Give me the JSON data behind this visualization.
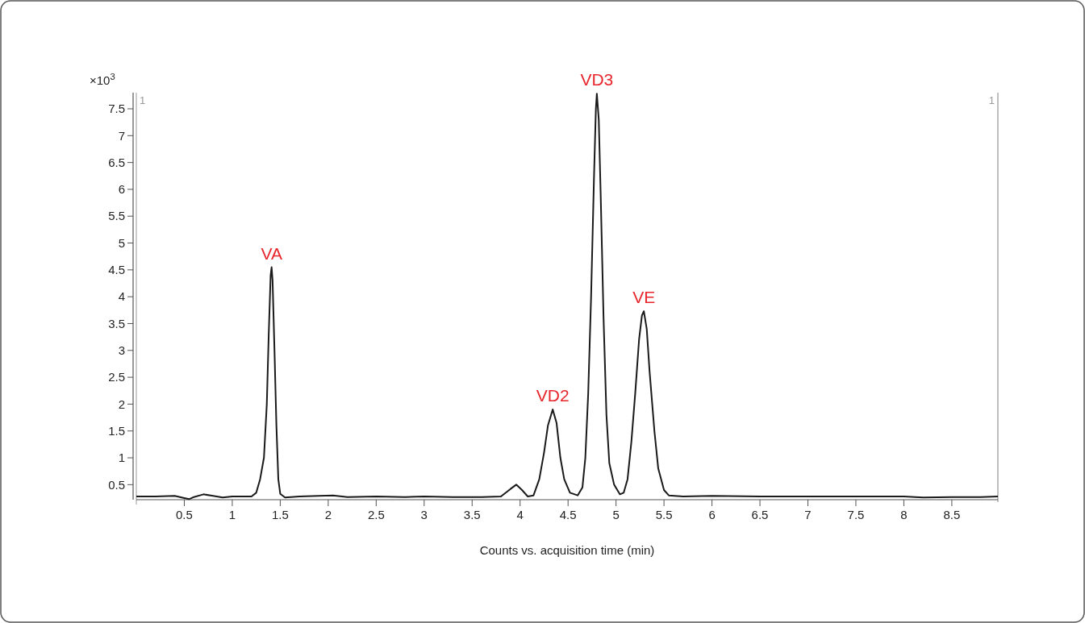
{
  "chart_data": {
    "type": "line",
    "xlabel": "Counts vs. acquisition time (min)",
    "ylabel": "×10$^{3}$",
    "xlim": [
      0,
      8.98
    ],
    "ylim": [
      0.22,
      7.8
    ],
    "xticks": [
      0.5,
      1,
      1.5,
      2,
      2.5,
      3,
      3.5,
      4,
      4.5,
      5,
      5.5,
      6,
      6.5,
      7,
      7.5,
      8,
      8.5
    ],
    "yticks": [
      0.5,
      1,
      1.5,
      2,
      2.5,
      3,
      3.5,
      4,
      4.5,
      5,
      5.5,
      6,
      6.5,
      7,
      7.5
    ],
    "grid": false,
    "marker": "none",
    "line_style": "solid",
    "series": [
      {
        "color": "#1a1a1a",
        "x": [
          0,
          0.2,
          0.4,
          0.5,
          0.55,
          0.6,
          0.7,
          0.8,
          0.9,
          1.0,
          1.1,
          1.2,
          1.25,
          1.29,
          1.33,
          1.36,
          1.38,
          1.4,
          1.41,
          1.42,
          1.44,
          1.46,
          1.48,
          1.5,
          1.55,
          1.7,
          1.9,
          2.05,
          2.2,
          2.5,
          2.8,
          3.0,
          3.3,
          3.6,
          3.8,
          3.9,
          3.96,
          4.02,
          4.08,
          4.14,
          4.2,
          4.25,
          4.29,
          4.34,
          4.38,
          4.42,
          4.46,
          4.52,
          4.6,
          4.65,
          4.68,
          4.71,
          4.74,
          4.77,
          4.79,
          4.8,
          4.82,
          4.84,
          4.87,
          4.9,
          4.93,
          4.98,
          5.04,
          5.08,
          5.12,
          5.16,
          5.2,
          5.24,
          5.27,
          5.29,
          5.32,
          5.35,
          5.4,
          5.44,
          5.5,
          5.55,
          5.7,
          6.0,
          6.5,
          7.0,
          7.5,
          8.0,
          8.2,
          8.5,
          8.8,
          8.98
        ],
        "values": [
          0.28,
          0.28,
          0.29,
          0.25,
          0.23,
          0.27,
          0.32,
          0.29,
          0.26,
          0.28,
          0.28,
          0.28,
          0.35,
          0.6,
          1.0,
          2.0,
          3.3,
          4.4,
          4.55,
          4.3,
          3.0,
          1.6,
          0.6,
          0.33,
          0.26,
          0.28,
          0.29,
          0.3,
          0.27,
          0.28,
          0.27,
          0.28,
          0.27,
          0.27,
          0.28,
          0.42,
          0.5,
          0.4,
          0.28,
          0.3,
          0.6,
          1.1,
          1.6,
          1.9,
          1.65,
          1.0,
          0.6,
          0.35,
          0.3,
          0.45,
          1.0,
          2.2,
          4.0,
          6.2,
          7.5,
          7.78,
          7.3,
          5.9,
          3.6,
          1.8,
          0.9,
          0.5,
          0.32,
          0.35,
          0.6,
          1.3,
          2.2,
          3.2,
          3.65,
          3.73,
          3.4,
          2.6,
          1.5,
          0.8,
          0.4,
          0.3,
          0.28,
          0.29,
          0.28,
          0.28,
          0.28,
          0.28,
          0.26,
          0.27,
          0.27,
          0.28
        ]
      }
    ],
    "annotations": [
      {
        "text": "VA",
        "x": 1.41,
        "y": 4.55
      },
      {
        "text": "VD2",
        "x": 4.34,
        "y": 1.9
      },
      {
        "text": "VD3",
        "x": 4.8,
        "y": 7.78
      },
      {
        "text": "VE",
        "x": 5.29,
        "y": 3.73
      },
      "1",
      "1"
    ]
  }
}
